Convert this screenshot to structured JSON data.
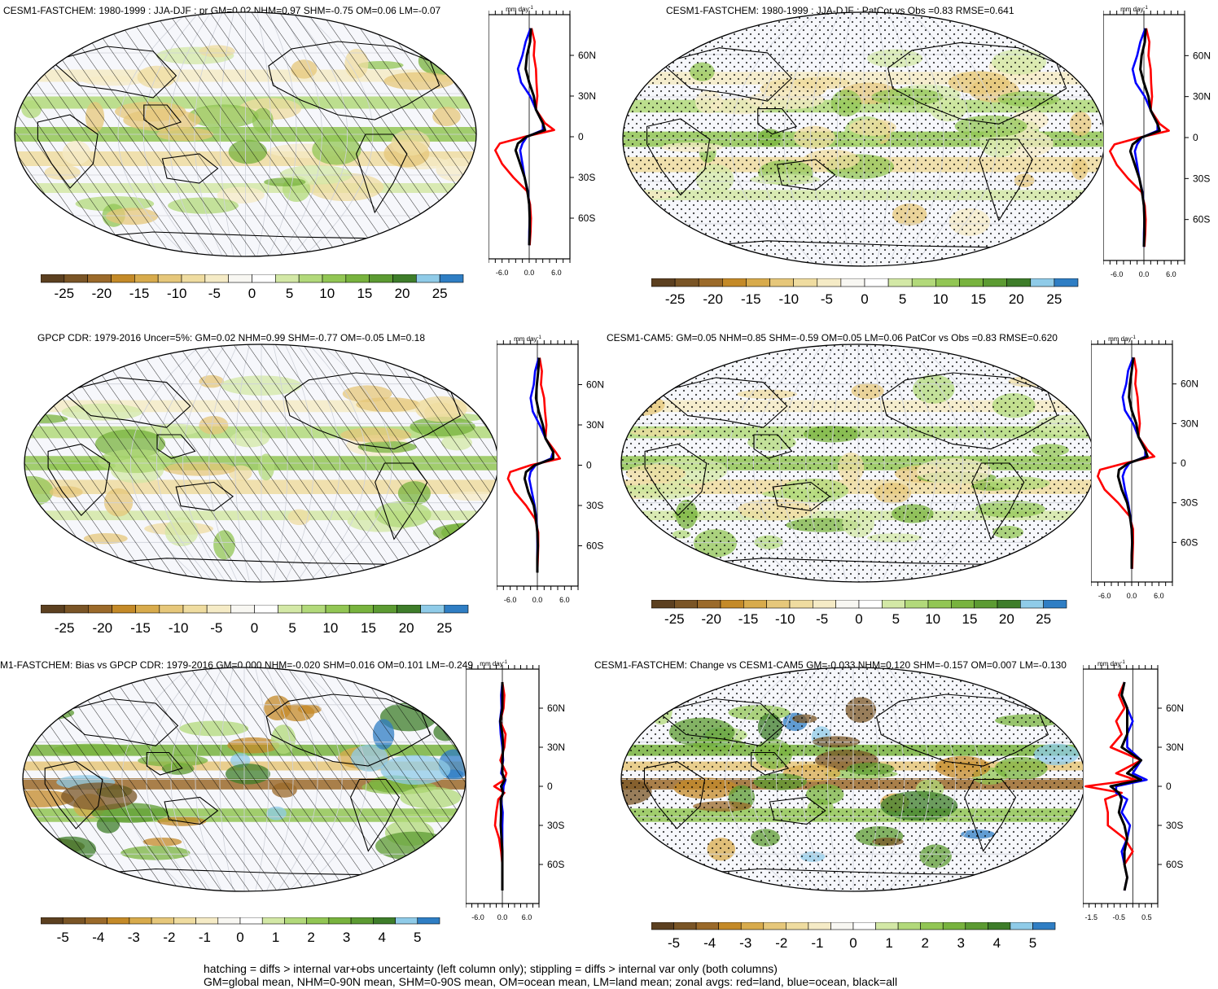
{
  "panels": [
    {
      "id": "p1",
      "title": "CESM1-FASTCHEM: 1980-1999 : JJA-DJF : pr GM=0.02 NHM=0.97 SHM=-0.75 OM=0.06 LM=-0.07",
      "overlay": "hatch",
      "zonal_unit": "mm day",
      "zonal_unit_sup": "-1",
      "zonal_lat_labels": [
        "60N",
        "30N",
        "0",
        "30S",
        "60S"
      ],
      "zonal_x_ticks": [
        "-6.0",
        "0.0",
        "6.0"
      ],
      "cbar_labels": [
        "-25",
        "-20",
        "-15",
        "-10",
        "-5",
        "0",
        "5",
        "10",
        "15",
        "20",
        "25"
      ]
    },
    {
      "id": "p2",
      "title": "CESM1-FASTCHEM: 1980-1999 : JJA-DJF : PatCor vs Obs =0.83 RMSE=0.641",
      "overlay": "stipple",
      "zonal_unit": "mm day",
      "zonal_unit_sup": "-1",
      "zonal_lat_labels": [
        "60N",
        "30N",
        "0",
        "30S",
        "60S"
      ],
      "zonal_x_ticks": [
        "-6.0",
        "0.0",
        "6.0"
      ],
      "cbar_labels": [
        "-25",
        "-20",
        "-15",
        "-10",
        "-5",
        "0",
        "5",
        "10",
        "15",
        "20",
        "25"
      ]
    },
    {
      "id": "p3",
      "title": "GPCP CDR: 1979-2016 Uncer=5%: GM=0.02 NHM=0.99 SHM=-0.77 OM=-0.05 LM=0.18",
      "overlay": "hatch",
      "zonal_unit": "mm day",
      "zonal_unit_sup": "-1",
      "zonal_lat_labels": [
        "60N",
        "30N",
        "0",
        "30S",
        "60S"
      ],
      "zonal_x_ticks": [
        "-6.0",
        "0.0",
        "6.0"
      ],
      "cbar_labels": [
        "-25",
        "-20",
        "-15",
        "-10",
        "-5",
        "0",
        "5",
        "10",
        "15",
        "20",
        "25"
      ]
    },
    {
      "id": "p4",
      "title": "CESM1-CAM5: GM=0.05 NHM=0.85 SHM=-0.59 OM=0.05 LM=0.06 PatCor vs Obs =0.83 RMSE=0.620",
      "overlay": "stipple",
      "zonal_unit": "mm day",
      "zonal_unit_sup": "-1",
      "zonal_lat_labels": [
        "60N",
        "30N",
        "0",
        "30S",
        "60S"
      ],
      "zonal_x_ticks": [
        "-6.0",
        "0.0",
        "6.0"
      ],
      "cbar_labels": [
        "-25",
        "-20",
        "-15",
        "-10",
        "-5",
        "0",
        "5",
        "10",
        "15",
        "20",
        "25"
      ]
    },
    {
      "id": "p5",
      "title": "M1-FASTCHEM: Bias vs GPCP CDR: 1979-2016 GM=0.000 NHM=-0.020 SHM=0.016 OM=0.101 LM=-0.249",
      "overlay": "hatch",
      "zonal_unit": "mm day",
      "zonal_unit_sup": "-1",
      "zonal_lat_labels": [
        "60N",
        "30N",
        "0",
        "30S",
        "60S"
      ],
      "zonal_x_ticks": [
        "-6.0",
        "0.0",
        "6.0"
      ],
      "cbar_labels": [
        "-5",
        "-4",
        "-3",
        "-2",
        "-1",
        "0",
        "1",
        "2",
        "3",
        "4",
        "5"
      ]
    },
    {
      "id": "p6",
      "title": "CESM1-FASTCHEM: Change vs CESM1-CAM5 GM=-0.033 NHM=0.120 SHM=-0.157 OM=0.007 LM=-0.130",
      "overlay": "stipple",
      "zonal_unit": "mm day",
      "zonal_unit_sup": "-1",
      "zonal_lat_labels": [
        "60N",
        "30N",
        "0",
        "30S",
        "60S"
      ],
      "zonal_x_ticks": [
        "-1.5",
        "-0.5",
        "0.5"
      ],
      "cbar_labels": [
        "-5",
        "-4",
        "-3",
        "-2",
        "-1",
        "0",
        "1",
        "2",
        "3",
        "4",
        "5"
      ]
    }
  ],
  "colors": {
    "palette": [
      "#5c4020",
      "#7a5526",
      "#9b6a2a",
      "#c48a28",
      "#d8ab4c",
      "#e6c77a",
      "#efdca0",
      "#f5ebc6",
      "#f8f7f2",
      "#ffffff",
      "#d3e8a6",
      "#b2d97a",
      "#92c654",
      "#78b33e",
      "#5c9b32",
      "#3e7d2a",
      "#8fcbe8",
      "#2f7ec4"
    ],
    "land": "#ff0000",
    "ocean": "#0000ff",
    "all": "#000000",
    "ocean_fill": "#f6f7fb"
  },
  "notes": [
    "hatching = diffs > internal var+obs uncertainty (left column only); stippling = diffs > internal var only (both columns)",
    "GM=global mean, NHM=0-90N mean, SHM=0-90S mean, OM=ocean mean, LM=land mean; zonal avgs: red=land, blue=ocean, black=all"
  ],
  "chart_data": [
    {
      "type": "heatmap",
      "title": "CESM1-FASTCHEM: 1980-1999 : JJA-DJF : pr GM=0.02 NHM=0.97 SHM=-0.75 OM=0.06 LM=-0.07",
      "colorbar_levels": [
        -25,
        -20,
        -15,
        -10,
        -5,
        0,
        5,
        10,
        15,
        20,
        25
      ],
      "zonal_xlim": [
        -9,
        9
      ],
      "zonal": {
        "lat": [
          80,
          70,
          60,
          50,
          40,
          30,
          20,
          10,
          5,
          0,
          -5,
          -10,
          -20,
          -30,
          -40,
          -50,
          -60,
          -70,
          -80
        ],
        "land": [
          0.5,
          1.2,
          1.0,
          1.5,
          1.6,
          1.8,
          1.5,
          3.5,
          5.5,
          -1.0,
          -6.5,
          -7.5,
          -6.0,
          -3.5,
          -0.5,
          0.2,
          0.4,
          0.3,
          0.1
        ],
        "ocean": [
          0.3,
          -0.8,
          -1.5,
          -2.5,
          -1.8,
          0.2,
          1.5,
          3.0,
          3.0,
          -0.5,
          -1.5,
          -2.0,
          -1.5,
          -1.0,
          -0.3,
          0.0,
          0.1,
          0.0,
          0.0
        ],
        "all": [
          0.4,
          0.2,
          -0.5,
          -0.8,
          0.0,
          1.0,
          1.5,
          3.0,
          3.5,
          -0.6,
          -2.5,
          -3.0,
          -2.0,
          -1.0,
          -0.4,
          0.0,
          0.1,
          0.1,
          0.0
        ]
      }
    },
    {
      "type": "heatmap",
      "title": "CESM1-FASTCHEM: 1980-1999 : JJA-DJF : PatCor vs Obs =0.83 RMSE=0.641",
      "colorbar_levels": [
        -25,
        -20,
        -15,
        -10,
        -5,
        0,
        5,
        10,
        15,
        20,
        25
      ],
      "zonal_xlim": [
        -9,
        9
      ],
      "zonal": {
        "lat": [
          80,
          70,
          60,
          50,
          40,
          30,
          20,
          10,
          5,
          0,
          -5,
          -10,
          -20,
          -30,
          -40,
          -50,
          -60,
          -70,
          -80
        ],
        "land": [
          0.5,
          1.2,
          1.0,
          1.5,
          1.6,
          1.8,
          1.5,
          3.5,
          5.5,
          -1.0,
          -6.5,
          -7.5,
          -6.0,
          -3.5,
          -0.5,
          0.2,
          0.4,
          0.3,
          0.1
        ],
        "ocean": [
          0.3,
          -0.8,
          -1.5,
          -2.5,
          -1.8,
          0.2,
          1.5,
          3.0,
          3.0,
          -0.5,
          -1.5,
          -2.0,
          -1.5,
          -1.0,
          -0.3,
          0.0,
          0.1,
          0.0,
          0.0
        ],
        "all": [
          0.4,
          0.2,
          -0.5,
          -0.8,
          0.0,
          1.0,
          1.5,
          3.0,
          3.5,
          -0.6,
          -2.5,
          -3.0,
          -2.0,
          -1.0,
          -0.4,
          0.0,
          0.1,
          0.1,
          0.0
        ]
      }
    },
    {
      "type": "heatmap",
      "title": "GPCP CDR: 1979-2016 Uncer=5%: GM=0.02 NHM=0.99 SHM=-0.77 OM=-0.05 LM=0.18",
      "colorbar_levels": [
        -25,
        -20,
        -15,
        -10,
        -5,
        0,
        5,
        10,
        15,
        20,
        25
      ],
      "zonal_xlim": [
        -9,
        9
      ],
      "zonal": {
        "lat": [
          80,
          70,
          60,
          50,
          40,
          30,
          20,
          10,
          5,
          0,
          -5,
          -10,
          -20,
          -30,
          -40,
          -50,
          -60,
          -70,
          -80
        ],
        "land": [
          0.5,
          1.0,
          0.8,
          1.5,
          1.7,
          2.0,
          1.8,
          4.0,
          5.0,
          -1.5,
          -6.0,
          -6.5,
          -5.0,
          -2.5,
          -0.5,
          0.2,
          0.2,
          0.1,
          0.0
        ],
        "ocean": [
          0.3,
          -0.5,
          -0.8,
          -1.5,
          -1.0,
          0.5,
          1.8,
          3.5,
          3.0,
          -0.4,
          -1.5,
          -1.8,
          -1.2,
          -0.6,
          -0.2,
          0.0,
          0.0,
          0.0,
          0.0
        ],
        "all": [
          0.4,
          0.2,
          -0.1,
          -0.3,
          0.3,
          1.2,
          1.8,
          3.5,
          3.5,
          -0.6,
          -2.5,
          -2.8,
          -2.0,
          -0.8,
          -0.3,
          0.0,
          0.1,
          0.0,
          0.0
        ]
      }
    },
    {
      "type": "heatmap",
      "title": "CESM1-CAM5: GM=0.05 NHM=0.85 SHM=-0.59 OM=0.05 LM=0.06 PatCor vs Obs =0.83 RMSE=0.620",
      "colorbar_levels": [
        -25,
        -20,
        -15,
        -10,
        -5,
        0,
        5,
        10,
        15,
        20,
        25
      ],
      "zonal_xlim": [
        -9,
        9
      ],
      "zonal": {
        "lat": [
          80,
          70,
          60,
          50,
          40,
          30,
          20,
          10,
          5,
          0,
          -5,
          -10,
          -20,
          -30,
          -40,
          -50,
          -60,
          -70,
          -80
        ],
        "land": [
          0.5,
          1.0,
          0.8,
          1.3,
          1.5,
          1.8,
          1.5,
          3.5,
          5.0,
          -1.5,
          -7.0,
          -7.5,
          -6.0,
          -3.0,
          -0.5,
          0.3,
          0.3,
          0.2,
          0.1
        ],
        "ocean": [
          0.3,
          -0.8,
          -1.2,
          -2.0,
          -1.5,
          0.3,
          1.5,
          3.0,
          3.0,
          -0.5,
          -1.5,
          -2.0,
          -1.5,
          -0.8,
          -0.3,
          0.0,
          0.1,
          0.0,
          0.0
        ],
        "all": [
          0.4,
          0.0,
          -0.4,
          -0.6,
          0.0,
          1.0,
          1.5,
          3.0,
          3.5,
          -0.7,
          -2.8,
          -3.0,
          -2.2,
          -1.0,
          -0.4,
          0.0,
          0.1,
          0.0,
          0.0
        ]
      }
    },
    {
      "type": "heatmap",
      "title": "M1-FASTCHEM: Bias vs GPCP CDR: 1979-2016 GM=0.000 NHM=-0.020 SHM=0.016 OM=0.101 LM=-0.249",
      "colorbar_levels": [
        -5,
        -4,
        -3,
        -2,
        -1,
        0,
        1,
        2,
        3,
        4,
        5
      ],
      "zonal_xlim": [
        -9,
        9
      ],
      "zonal": {
        "lat": [
          80,
          70,
          60,
          50,
          40,
          30,
          20,
          10,
          5,
          0,
          -5,
          -10,
          -20,
          -30,
          -40,
          -50,
          -60,
          -70,
          -80
        ],
        "land": [
          0.0,
          0.5,
          0.3,
          -0.5,
          0.8,
          0.5,
          -0.5,
          1.0,
          0.5,
          -2.0,
          0.5,
          -1.0,
          -1.5,
          -1.8,
          -0.8,
          -0.3,
          0.0,
          0.0,
          0.0
        ],
        "ocean": [
          0.0,
          -0.3,
          -0.2,
          -0.6,
          -0.4,
          0.0,
          0.2,
          -0.3,
          0.8,
          0.3,
          0.2,
          -0.3,
          0.1,
          0.0,
          0.0,
          0.0,
          0.0,
          0.0,
          0.0
        ],
        "all": [
          0.0,
          0.0,
          0.0,
          -0.5,
          0.0,
          0.2,
          0.0,
          0.0,
          0.6,
          -0.3,
          0.2,
          -0.4,
          -0.3,
          -0.4,
          -0.2,
          0.0,
          0.0,
          0.0,
          0.0
        ]
      }
    },
    {
      "type": "heatmap",
      "title": "CESM1-FASTCHEM: Change vs CESM1-CAM5 GM=-0.033 NHM=0.120 SHM=-0.157 OM=0.007 LM=-0.130",
      "colorbar_levels": [
        -5,
        -4,
        -3,
        -2,
        -1,
        0,
        1,
        2,
        3,
        4,
        5
      ],
      "zonal_xlim": [
        -1.8,
        0.9
      ],
      "zonal": {
        "lat": [
          80,
          70,
          60,
          50,
          40,
          30,
          20,
          10,
          5,
          0,
          -5,
          -10,
          -20,
          -30,
          -40,
          -50,
          -60,
          -70,
          -80
        ],
        "land": [
          -0.3,
          -0.5,
          -0.3,
          -0.6,
          -0.4,
          -0.8,
          0.3,
          -0.6,
          0.1,
          -1.7,
          -0.4,
          -1.0,
          -0.9,
          -0.9,
          -0.3,
          0.0,
          -0.3,
          -0.2,
          -0.3
        ],
        "ocean": [
          -0.3,
          -0.4,
          -0.2,
          0.0,
          -0.2,
          -0.2,
          0.3,
          0.0,
          0.5,
          -0.6,
          -0.6,
          -0.2,
          -0.4,
          -0.1,
          -0.2,
          -0.4,
          -0.3,
          -0.2,
          -0.3
        ],
        "all": [
          -0.3,
          -0.4,
          -0.2,
          -0.2,
          -0.2,
          -0.4,
          0.3,
          -0.2,
          0.3,
          -0.8,
          -0.5,
          -0.4,
          -0.5,
          -0.3,
          -0.2,
          -0.3,
          -0.3,
          -0.2,
          -0.3
        ]
      }
    }
  ]
}
